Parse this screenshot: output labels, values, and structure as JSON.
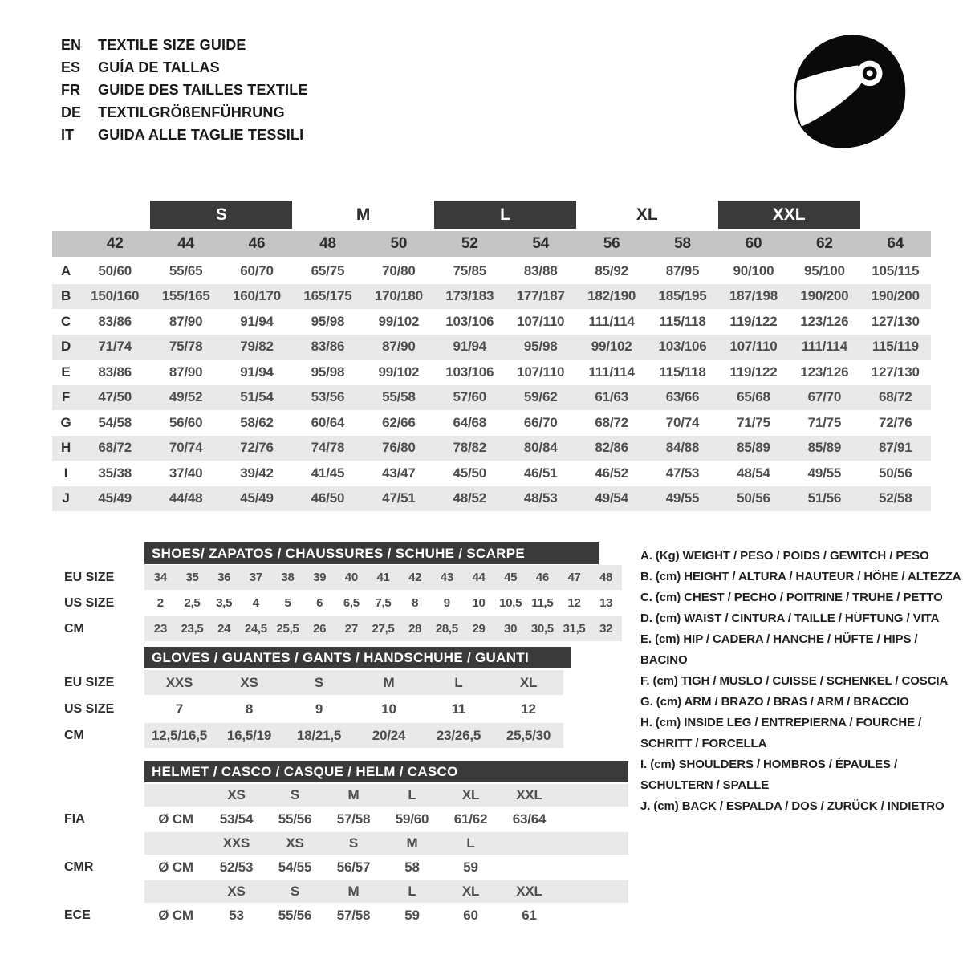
{
  "colors": {
    "dark": "#3a3a3a",
    "band": "#c5c5c5",
    "shade": "#e9e9e9",
    "text": "#333333",
    "icon": "#0a0a0a"
  },
  "header": {
    "languages": [
      {
        "code": "EN",
        "title": "TEXTILE SIZE GUIDE"
      },
      {
        "code": "ES",
        "title": "GUÍA DE TALLAS"
      },
      {
        "code": "FR",
        "title": "GUIDE DES TAILLES TEXTILE"
      },
      {
        "code": "DE",
        "title": "TEXTILGRÖßENFÜHRUNG"
      },
      {
        "code": "IT",
        "title": "GUIDA ALLE TAGLIE TESSILI"
      }
    ],
    "icon": "racing-helmet"
  },
  "main_table": {
    "size_bands": [
      {
        "label": "S",
        "dark": true
      },
      {
        "label": "M",
        "dark": false
      },
      {
        "label": "L",
        "dark": true
      },
      {
        "label": "XL",
        "dark": false
      },
      {
        "label": "XXL",
        "dark": true
      }
    ],
    "numeric_sizes": [
      "42",
      "44",
      "46",
      "48",
      "50",
      "52",
      "54",
      "56",
      "58",
      "60",
      "62",
      "64"
    ],
    "rows": [
      {
        "label": "A",
        "values": [
          "50/60",
          "55/65",
          "60/70",
          "65/75",
          "70/80",
          "75/85",
          "83/88",
          "85/92",
          "87/95",
          "90/100",
          "95/100",
          "105/115"
        ]
      },
      {
        "label": "B",
        "values": [
          "150/160",
          "155/165",
          "160/170",
          "165/175",
          "170/180",
          "173/183",
          "177/187",
          "182/190",
          "185/195",
          "187/198",
          "190/200",
          "190/200"
        ]
      },
      {
        "label": "C",
        "values": [
          "83/86",
          "87/90",
          "91/94",
          "95/98",
          "99/102",
          "103/106",
          "107/110",
          "111/114",
          "115/118",
          "119/122",
          "123/126",
          "127/130"
        ]
      },
      {
        "label": "D",
        "values": [
          "71/74",
          "75/78",
          "79/82",
          "83/86",
          "87/90",
          "91/94",
          "95/98",
          "99/102",
          "103/106",
          "107/110",
          "111/114",
          "115/119"
        ]
      },
      {
        "label": "E",
        "values": [
          "83/86",
          "87/90",
          "91/94",
          "95/98",
          "99/102",
          "103/106",
          "107/110",
          "111/114",
          "115/118",
          "119/122",
          "123/126",
          "127/130"
        ]
      },
      {
        "label": "F",
        "values": [
          "47/50",
          "49/52",
          "51/54",
          "53/56",
          "55/58",
          "57/60",
          "59/62",
          "61/63",
          "63/66",
          "65/68",
          "67/70",
          "68/72"
        ]
      },
      {
        "label": "G",
        "values": [
          "54/58",
          "56/60",
          "58/62",
          "60/64",
          "62/66",
          "64/68",
          "66/70",
          "68/72",
          "70/74",
          "71/75",
          "71/75",
          "72/76"
        ]
      },
      {
        "label": "H",
        "values": [
          "68/72",
          "70/74",
          "72/76",
          "74/78",
          "76/80",
          "78/82",
          "80/84",
          "82/86",
          "84/88",
          "85/89",
          "85/89",
          "87/91"
        ]
      },
      {
        "label": "I",
        "values": [
          "35/38",
          "37/40",
          "39/42",
          "41/45",
          "43/47",
          "45/50",
          "46/51",
          "46/52",
          "47/53",
          "48/54",
          "49/55",
          "50/56"
        ]
      },
      {
        "label": "J",
        "values": [
          "45/49",
          "44/48",
          "45/49",
          "46/50",
          "47/51",
          "48/52",
          "48/53",
          "49/54",
          "49/55",
          "50/56",
          "51/56",
          "52/58"
        ]
      }
    ]
  },
  "shoes": {
    "title": "SHOES/ ZAPATOS / CHAUSSURES / SCHUHE / SCARPE",
    "rows": [
      {
        "label": "EU SIZE",
        "shaded": true,
        "values": [
          "34",
          "35",
          "36",
          "37",
          "38",
          "39",
          "40",
          "41",
          "42",
          "43",
          "44",
          "45",
          "46",
          "47",
          "48"
        ]
      },
      {
        "label": "US SIZE",
        "shaded": false,
        "values": [
          "2",
          "2,5",
          "3,5",
          "4",
          "5",
          "6",
          "6,5",
          "7,5",
          "8",
          "9",
          "10",
          "10,5",
          "11,5",
          "12",
          "13"
        ]
      },
      {
        "label": "CM",
        "shaded": true,
        "values": [
          "23",
          "23,5",
          "24",
          "24,5",
          "25,5",
          "26",
          "27",
          "27,5",
          "28",
          "28,5",
          "29",
          "30",
          "30,5",
          "31,5",
          "32"
        ]
      }
    ]
  },
  "gloves": {
    "title": "GLOVES / GUANTES / GANTS / HANDSCHUHE / GUANTI",
    "rows": [
      {
        "label": "EU SIZE",
        "shaded": true,
        "values": [
          "XXS",
          "XS",
          "S",
          "M",
          "L",
          "XL"
        ]
      },
      {
        "label": "US SIZE",
        "shaded": false,
        "values": [
          "7",
          "8",
          "9",
          "10",
          "11",
          "12"
        ]
      },
      {
        "label": "CM",
        "shaded": true,
        "values": [
          "12,5/16,5",
          "16,5/19",
          "18/21,5",
          "20/24",
          "23/26,5",
          "25,5/30"
        ]
      }
    ]
  },
  "helmet": {
    "title": "HELMET / CASCO / CASQUE / HELM / CASCO",
    "standards": [
      {
        "label": "FIA",
        "unit": "Ø CM",
        "sizes": [
          "XS",
          "S",
          "M",
          "L",
          "XL",
          "XXL"
        ],
        "values": [
          "53/54",
          "55/56",
          "57/58",
          "59/60",
          "61/62",
          "63/64"
        ]
      },
      {
        "label": "CMR",
        "unit": "Ø CM",
        "sizes": [
          "XXS",
          "XS",
          "S",
          "M",
          "L"
        ],
        "values": [
          "52/53",
          "54/55",
          "56/57",
          "58",
          "59"
        ]
      },
      {
        "label": "ECE",
        "unit": "Ø CM",
        "sizes": [
          "XS",
          "S",
          "M",
          "L",
          "XL",
          "XXL"
        ],
        "values": [
          "53",
          "55/56",
          "57/58",
          "59",
          "60",
          "61"
        ]
      }
    ]
  },
  "legend": {
    "items": [
      {
        "key": "A.",
        "unit": "(Kg)",
        "text": "WEIGHT / PESO / POIDS / GEWITCH / PESO"
      },
      {
        "key": "B.",
        "unit": "(cm)",
        "text": "HEIGHT / ALTURA / HAUTEUR / HÖHE / ALTEZZA"
      },
      {
        "key": "C.",
        "unit": "(cm)",
        "text": "CHEST / PECHO / POITRINE / TRUHE / PETTO"
      },
      {
        "key": "D.",
        "unit": "(cm)",
        "text": "WAIST / CINTURA / TAILLE / HÜFTUNG / VITA"
      },
      {
        "key": "E.",
        "unit": "(cm)",
        "text": "HIP / CADERA / HANCHE / HÜFTE / HIPS / BACINO"
      },
      {
        "key": "F.",
        "unit": "(cm)",
        "text": "TIGH / MUSLO / CUISSE / SCHENKEL / COSCIA"
      },
      {
        "key": "G.",
        "unit": "(cm)",
        "text": "ARM / BRAZO / BRAS / ARM / BRACCIO"
      },
      {
        "key": "H.",
        "unit": "(cm)",
        "text": "INSIDE LEG / ENTREPIERNA / FOURCHE / SCHRITT / FORCELLA"
      },
      {
        "key": "I.",
        "unit": "(cm)",
        "text": "SHOULDERS / HOMBROS / ÉPAULES / SCHULTERN / SPALLE"
      },
      {
        "key": "J.",
        "unit": "(cm)",
        "text": "BACK / ESPALDA / DOS / ZURÜCK / INDIETRO"
      }
    ]
  }
}
